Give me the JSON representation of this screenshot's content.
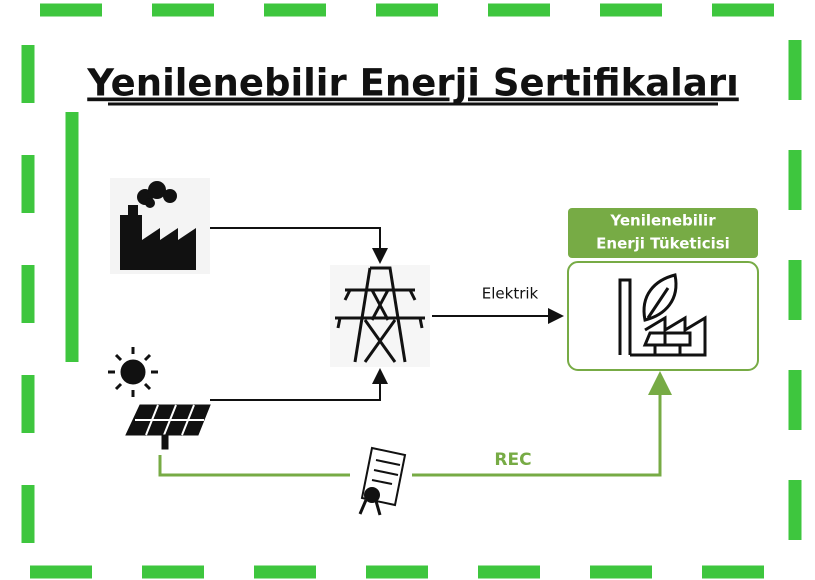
{
  "title": "Yenilenebilir Enerji Sertifikaları",
  "consumer": {
    "label_lines": [
      "Yenilenebilir",
      "Enerji Tüketicisi"
    ]
  },
  "edges": {
    "electricity": "Elektrik",
    "certificate": "REC"
  }
}
